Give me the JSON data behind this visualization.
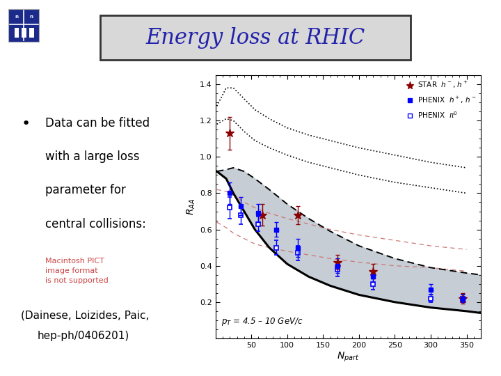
{
  "title": "Energy loss at RHIC",
  "title_color": "#2222aa",
  "title_fontsize": 22,
  "title_box_facecolor": "#d8d8d8",
  "title_box_edgecolor": "#333333",
  "background_color": "#ffffff",
  "bullet_text_line1": "Data can be fitted",
  "bullet_text_line2": "with a large loss",
  "bullet_text_line3": "parameter for",
  "bullet_text_line4": "central collisions:",
  "pict_text": "Macintosh PICT\nimage format\nis not supported",
  "pict_color": "#cc4444",
  "ref_line1": "(Dainese, Loizides, Paic,",
  "ref_line2": "hep-ph/0406201)",
  "pT_label": "$p_T$ = 4.5 – 10 GeV/c",
  "ylabel": "$R_{AA}$",
  "xlabel": "$N_{part}$",
  "ylim": [
    0,
    1.45
  ],
  "xlim": [
    0,
    370
  ],
  "yticks": [
    0.2,
    0.4,
    0.6,
    0.8,
    1.0,
    1.2,
    1.4
  ],
  "xticks": [
    50,
    100,
    150,
    200,
    250,
    300,
    350
  ],
  "star_x": [
    20,
    65,
    115,
    170,
    220,
    345
  ],
  "star_y": [
    1.13,
    0.68,
    0.68,
    0.42,
    0.37,
    0.22
  ],
  "star_yerr": [
    0.09,
    0.06,
    0.05,
    0.04,
    0.04,
    0.03
  ],
  "phenix_filled_x": [
    20,
    35,
    60,
    85,
    115,
    170,
    220,
    300,
    345
  ],
  "phenix_filled_y": [
    0.8,
    0.73,
    0.69,
    0.6,
    0.5,
    0.4,
    0.34,
    0.27,
    0.22
  ],
  "phenix_filled_yerr": [
    0.06,
    0.05,
    0.05,
    0.04,
    0.05,
    0.04,
    0.03,
    0.03,
    0.02
  ],
  "phenix_open_x": [
    20,
    35,
    60,
    85,
    115,
    170,
    220,
    300,
    345
  ],
  "phenix_open_y": [
    0.72,
    0.68,
    0.63,
    0.5,
    0.47,
    0.38,
    0.3,
    0.22,
    0.22
  ],
  "phenix_open_yerr": [
    0.06,
    0.05,
    0.04,
    0.04,
    0.04,
    0.04,
    0.03,
    0.02,
    0.02
  ],
  "curve_x": [
    2,
    15,
    25,
    40,
    55,
    75,
    100,
    130,
    160,
    200,
    250,
    300,
    350,
    370
  ],
  "curve_lower": [
    0.92,
    0.88,
    0.8,
    0.7,
    0.6,
    0.5,
    0.41,
    0.34,
    0.29,
    0.24,
    0.2,
    0.17,
    0.15,
    0.14
  ],
  "curve_upper": [
    0.92,
    0.93,
    0.94,
    0.92,
    0.88,
    0.82,
    0.74,
    0.66,
    0.59,
    0.51,
    0.44,
    0.39,
    0.36,
    0.35
  ],
  "dotted_upper1_x": [
    2,
    15,
    25,
    40,
    55,
    75,
    100,
    130,
    160,
    200,
    250,
    300,
    350
  ],
  "dotted_upper1_y": [
    1.28,
    1.38,
    1.38,
    1.32,
    1.26,
    1.21,
    1.16,
    1.12,
    1.09,
    1.05,
    1.01,
    0.97,
    0.94
  ],
  "dotted_upper2_x": [
    2,
    15,
    25,
    40,
    55,
    75,
    100,
    130,
    160,
    200,
    250,
    300,
    350
  ],
  "dotted_upper2_y": [
    1.18,
    1.21,
    1.2,
    1.14,
    1.09,
    1.05,
    1.01,
    0.97,
    0.94,
    0.9,
    0.86,
    0.83,
    0.8
  ],
  "dotted_lower1_x": [
    2,
    15,
    25,
    40,
    55,
    75,
    100,
    130,
    160,
    200,
    250,
    300,
    350
  ],
  "dotted_lower1_y": [
    0.82,
    0.81,
    0.79,
    0.75,
    0.72,
    0.69,
    0.66,
    0.63,
    0.6,
    0.57,
    0.54,
    0.51,
    0.49
  ],
  "dotted_lower2_x": [
    2,
    15,
    25,
    40,
    55,
    75,
    100,
    130,
    160,
    200,
    250,
    300,
    350
  ],
  "dotted_lower2_y": [
    0.64,
    0.61,
    0.58,
    0.55,
    0.52,
    0.5,
    0.48,
    0.46,
    0.44,
    0.42,
    0.4,
    0.39,
    0.37
  ]
}
